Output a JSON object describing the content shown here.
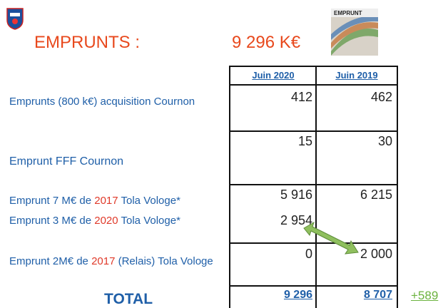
{
  "header": {
    "title": "EMPRUNTS :",
    "amount": "9 296 K€",
    "image_caption": "EMPRUNT"
  },
  "table": {
    "columns": [
      "Juin 2020",
      "Juin 2019"
    ],
    "rows": [
      {
        "label": [
          "Emprunts (800 k€) acquisition Cournon"
        ],
        "values": [
          "412",
          "462"
        ]
      },
      {
        "label": [
          "Emprunt FFF Cournon"
        ],
        "values": [
          "15",
          "30"
        ]
      },
      {
        "label": [
          "Emprunt 7 M€  de ",
          "2017",
          " Tola Vologe*"
        ],
        "values": [
          "5 916",
          "6 215"
        ]
      },
      {
        "label": [
          "Emprunt 3 M€  de ",
          "2020",
          " Tola Vologe*"
        ],
        "values": [
          "2 954"
        ]
      },
      {
        "label": [
          "Emprunt 2M€ de ",
          "2017",
          " (Relais) Tola Vologe"
        ],
        "values": [
          "0",
          "2 000"
        ]
      }
    ],
    "total": {
      "label": "TOTAL",
      "values": [
        "9 296",
        "8 707"
      ],
      "difference": "+589"
    }
  }
}
